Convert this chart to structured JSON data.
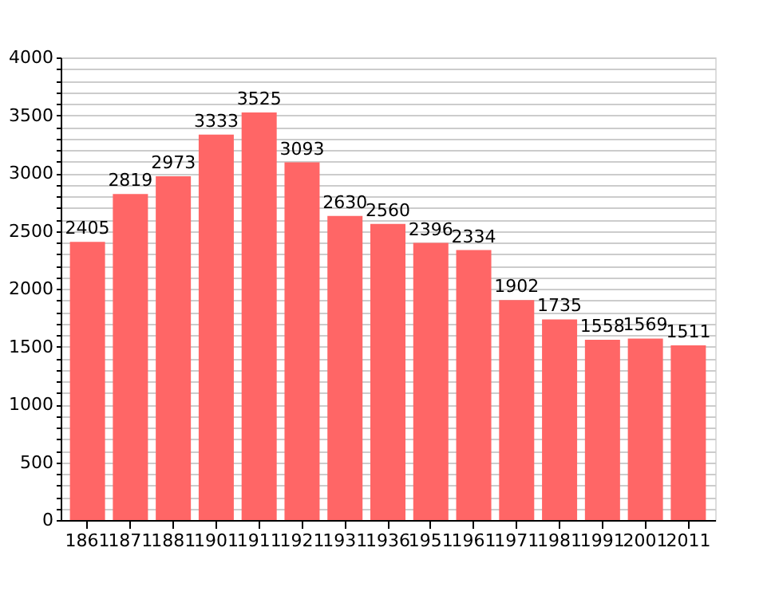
{
  "chart_data": {
    "type": "bar",
    "categories": [
      "1861",
      "1871",
      "1881",
      "1901",
      "1911",
      "1921",
      "1931",
      "1936",
      "1951",
      "1961",
      "1971",
      "1981",
      "1991",
      "2001",
      "2011"
    ],
    "values": [
      2405,
      2819,
      2973,
      3333,
      3525,
      3093,
      2630,
      2560,
      2396,
      2334,
      1902,
      1735,
      1558,
      1569,
      1511
    ],
    "color": "#ff6666",
    "data_labels": true,
    "grid": "y",
    "ylim": [
      0,
      4000
    ],
    "yticks": [
      0,
      {
        "value": 100,
        "label": null
      },
      {
        "value": 200,
        "label": null
      },
      {
        "value": 300,
        "label": null
      },
      {
        "value": 400,
        "label": null
      },
      500,
      {
        "value": 600,
        "label": null
      },
      {
        "value": 700,
        "label": null
      },
      {
        "value": 800,
        "label": null
      },
      {
        "value": 900,
        "label": null
      },
      1000,
      {
        "value": 1100,
        "label": null
      },
      {
        "value": 1200,
        "label": null
      },
      {
        "value": 1300,
        "label": null
      },
      {
        "value": 1400,
        "label": null
      },
      1500,
      {
        "value": 1600,
        "label": null
      },
      {
        "value": 1700,
        "label": null
      },
      {
        "value": 1800,
        "label": null
      },
      {
        "value": 1900,
        "label": null
      },
      2000,
      {
        "value": 2100,
        "label": null
      },
      {
        "value": 2200,
        "label": null
      },
      {
        "value": 2300,
        "label": null
      },
      {
        "value": 2400,
        "label": null
      },
      2500,
      {
        "value": 2600,
        "label": null
      },
      {
        "value": 2700,
        "label": null
      },
      {
        "value": 2800,
        "label": null
      },
      {
        "value": 2900,
        "label": null
      },
      3000,
      {
        "value": 3100,
        "label": null
      },
      {
        "value": 3200,
        "label": null
      },
      {
        "value": 3300,
        "label": null
      },
      {
        "value": 3400,
        "label": null
      },
      3500,
      {
        "value": 3600,
        "label": null
      },
      {
        "value": 3700,
        "label": null
      },
      {
        "value": 3800,
        "label": null
      },
      {
        "value": 3900,
        "label": null
      },
      4000
    ]
  }
}
